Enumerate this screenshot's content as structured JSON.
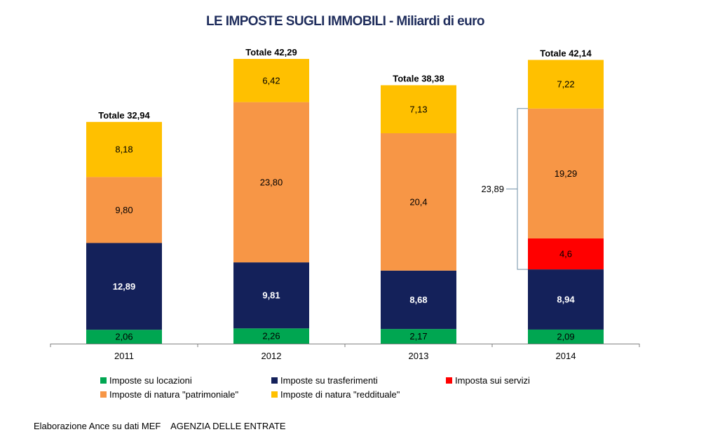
{
  "chart_data": {
    "type": "bar",
    "stacked": true,
    "title": "LE IMPOSTE SUGLI IMMOBILI - Miliardi di euro",
    "categories": [
      "2011",
      "2012",
      "2013",
      "2014"
    ],
    "series": [
      {
        "name": "Imposte su locazioni",
        "color": "#00A651",
        "label_color": "#000000",
        "values": [
          2.06,
          2.26,
          2.17,
          2.09
        ],
        "labels": [
          "2,06",
          "2,26",
          "2,17",
          "2,09"
        ]
      },
      {
        "name": "Imposte su trasferimenti",
        "color": "#14215A",
        "label_color": "#FFFFFF",
        "values": [
          12.89,
          9.81,
          8.68,
          8.94
        ],
        "labels": [
          "12,89",
          "9,81",
          "8,68",
          "8,94"
        ]
      },
      {
        "name": "Imposta sui servizi",
        "color": "#FF0000",
        "label_color": "#000000",
        "values": [
          0,
          0,
          0,
          4.6
        ],
        "labels": [
          "",
          "",
          "",
          "4,6"
        ]
      },
      {
        "name": "Imposte di natura \"patrimoniale\"",
        "color": "#F79646",
        "label_color": "#000000",
        "values": [
          9.8,
          23.8,
          20.4,
          19.29
        ],
        "labels": [
          "9,80",
          "23,80",
          "20,4",
          "19,29"
        ]
      },
      {
        "name": "Imposte di natura \"reddituale\"",
        "color": "#FFC000",
        "label_color": "#000000",
        "values": [
          8.18,
          6.42,
          7.13,
          7.22
        ],
        "labels": [
          "8,18",
          "6,42",
          "7,13",
          "7,22"
        ]
      }
    ],
    "totals": [
      "Totale 32,94",
      "Totale 42,29",
      "Totale 38,38",
      "Totale 42,14"
    ],
    "annotation": {
      "text": "23,89",
      "category": "2014",
      "span_series": [
        "Imposta sui servizi",
        "Imposte di natura \"patrimoniale\""
      ]
    },
    "ylim": [
      0,
      42.29
    ],
    "grid": false,
    "legend_position": "bottom"
  },
  "footer": {
    "source": "Elaborazione Ance su dati MEF    AGENZIA DELLE ENTRATE"
  }
}
